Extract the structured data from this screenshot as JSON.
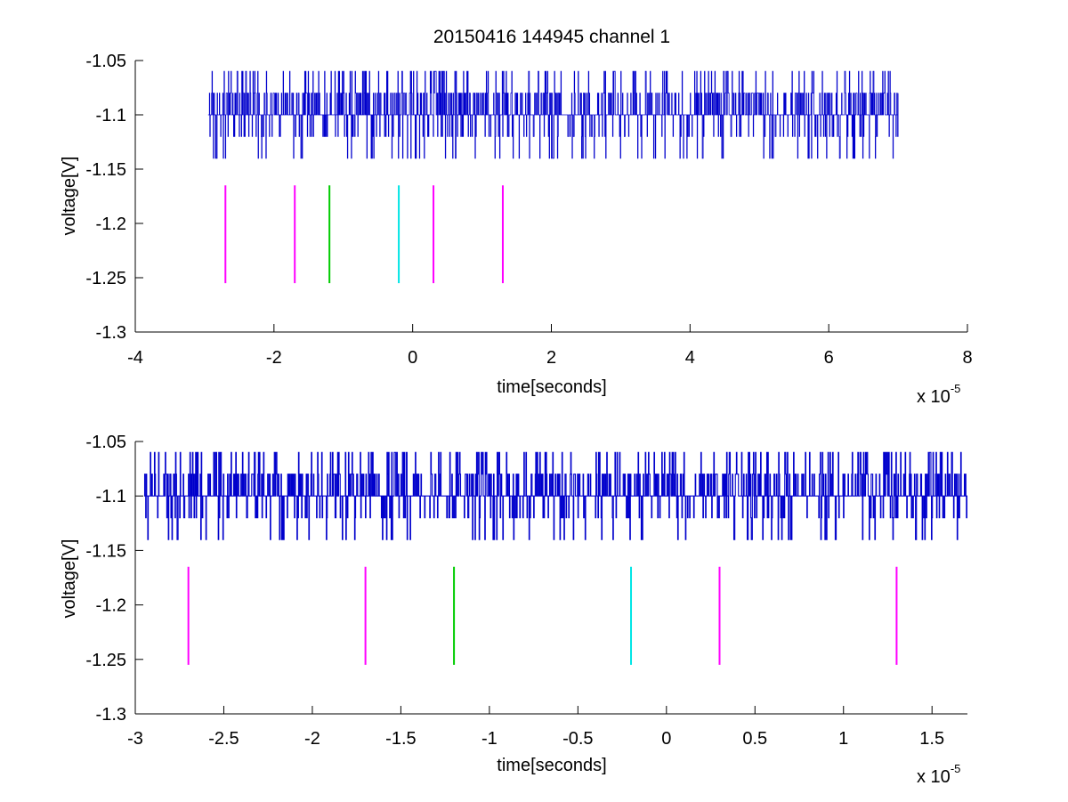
{
  "figure": {
    "title": "20150416 144945 channel 1"
  },
  "chart_data": [
    {
      "type": "line",
      "title": "20150416 144945 channel 1",
      "xlabel": "time[seconds]",
      "ylabel": "voltage[V]",
      "x_multiplier_label": "x 10",
      "x_multiplier_exponent": "-5",
      "xlim": [
        -4e-05,
        8e-05
      ],
      "ylim": [
        -1.3,
        -1.05
      ],
      "xticks": [
        -4,
        -2,
        0,
        2,
        4,
        6,
        8
      ],
      "xtick_labels": [
        "-4",
        "-2",
        "0",
        "2",
        "4",
        "6",
        "8"
      ],
      "yticks": [
        -1.05,
        -1.1,
        -1.15,
        -1.2,
        -1.25,
        -1.3
      ],
      "ytick_labels": [
        "-1.05",
        "-1.1",
        "-1.15",
        "-1.2",
        "-1.25",
        "-1.3"
      ],
      "grid": false,
      "series": [
        {
          "color": "#0000cc",
          "x_range": [
            -2.95e-05,
            7e-05
          ],
          "levels": [
            -1.06,
            -1.08,
            -1.1,
            -1.12,
            -1.14
          ],
          "description_type": "noisy digitized signal"
        }
      ],
      "markers": [
        {
          "x": -2.7e-05,
          "y_range": [
            -1.255,
            -1.165
          ],
          "color": "#ff00ff"
        },
        {
          "x": -1.7e-05,
          "y_range": [
            -1.255,
            -1.165
          ],
          "color": "#ff00ff"
        },
        {
          "x": -1.2e-05,
          "y_range": [
            -1.255,
            -1.165
          ],
          "color": "#00cc00"
        },
        {
          "x": -2e-06,
          "y_range": [
            -1.255,
            -1.165
          ],
          "color": "#00e5e5"
        },
        {
          "x": 3e-06,
          "y_range": [
            -1.255,
            -1.165
          ],
          "color": "#ff00ff"
        },
        {
          "x": 1.3e-05,
          "y_range": [
            -1.255,
            -1.165
          ],
          "color": "#ff00ff"
        }
      ]
    },
    {
      "type": "line",
      "title": "",
      "xlabel": "time[seconds]",
      "ylabel": "voltage[V]",
      "x_multiplier_label": "x 10",
      "x_multiplier_exponent": "-5",
      "xlim": [
        -3e-05,
        1.7e-05
      ],
      "ylim": [
        -1.3,
        -1.05
      ],
      "xticks": [
        -3,
        -2.5,
        -2,
        -1.5,
        -1,
        -0.5,
        0,
        0.5,
        1,
        1.5
      ],
      "xtick_labels": [
        "-3",
        "-2.5",
        "-2",
        "-1.5",
        "-1",
        "-0.5",
        "0",
        "0.5",
        "1",
        "1.5"
      ],
      "yticks": [
        -1.05,
        -1.1,
        -1.15,
        -1.2,
        -1.25,
        -1.3
      ],
      "ytick_labels": [
        "-1.05",
        "-1.1",
        "-1.15",
        "-1.2",
        "-1.25",
        "-1.3"
      ],
      "grid": false,
      "series": [
        {
          "color": "#0000cc",
          "x_range": [
            -2.95e-05,
            1.7e-05
          ],
          "levels": [
            -1.06,
            -1.08,
            -1.1,
            -1.12,
            -1.14
          ],
          "description_type": "noisy digitized signal"
        }
      ],
      "markers": [
        {
          "x": -2.7e-05,
          "y_range": [
            -1.255,
            -1.165
          ],
          "color": "#ff00ff"
        },
        {
          "x": -1.7e-05,
          "y_range": [
            -1.255,
            -1.165
          ],
          "color": "#ff00ff"
        },
        {
          "x": -1.2e-05,
          "y_range": [
            -1.255,
            -1.165
          ],
          "color": "#00cc00"
        },
        {
          "x": -2e-06,
          "y_range": [
            -1.255,
            -1.165
          ],
          "color": "#00e5e5"
        },
        {
          "x": 3e-06,
          "y_range": [
            -1.255,
            -1.165
          ],
          "color": "#ff00ff"
        },
        {
          "x": 1.3e-05,
          "y_range": [
            -1.255,
            -1.165
          ],
          "color": "#ff00ff"
        }
      ]
    }
  ]
}
